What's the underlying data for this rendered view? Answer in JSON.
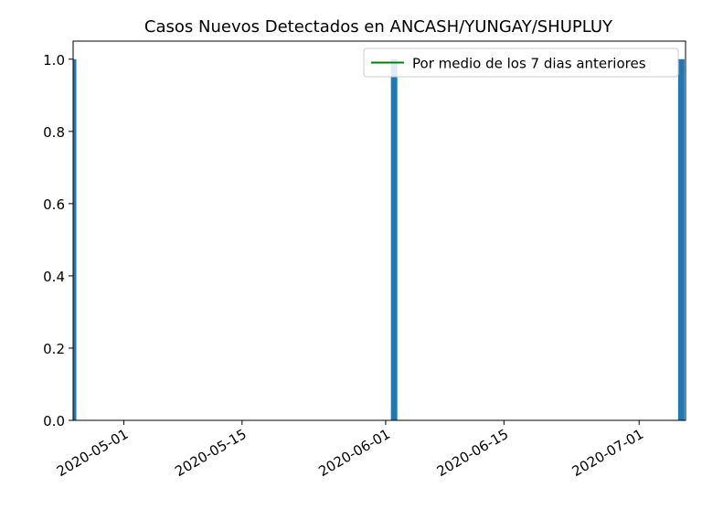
{
  "chart_data": {
    "type": "bar",
    "title": "Casos Nuevos Detectados en ANCASH/YUNGAY/SHUPLUY",
    "xlabel": "",
    "ylabel": "",
    "x_axis": {
      "type": "date",
      "range": [
        "2020-04-25",
        "2020-07-06"
      ],
      "ticks": [
        "2020-05-01",
        "2020-05-15",
        "2020-06-01",
        "2020-06-15",
        "2020-07-01"
      ]
    },
    "ylim": [
      0,
      1.05
    ],
    "yticks": [
      "0.0",
      "0.2",
      "0.4",
      "0.6",
      "0.8",
      "1.0"
    ],
    "bars": [
      {
        "date": "2020-04-25",
        "value": 1
      },
      {
        "date": "2020-06-02",
        "value": 1
      },
      {
        "date": "2020-07-06",
        "value": 1
      }
    ],
    "bar_color": "#1f77b4",
    "series": [
      {
        "name": "Por medio de los 7 dias anteriores",
        "type": "line",
        "color": "#008000",
        "values": []
      }
    ],
    "legend": {
      "position": "top-right"
    },
    "grid": false
  }
}
